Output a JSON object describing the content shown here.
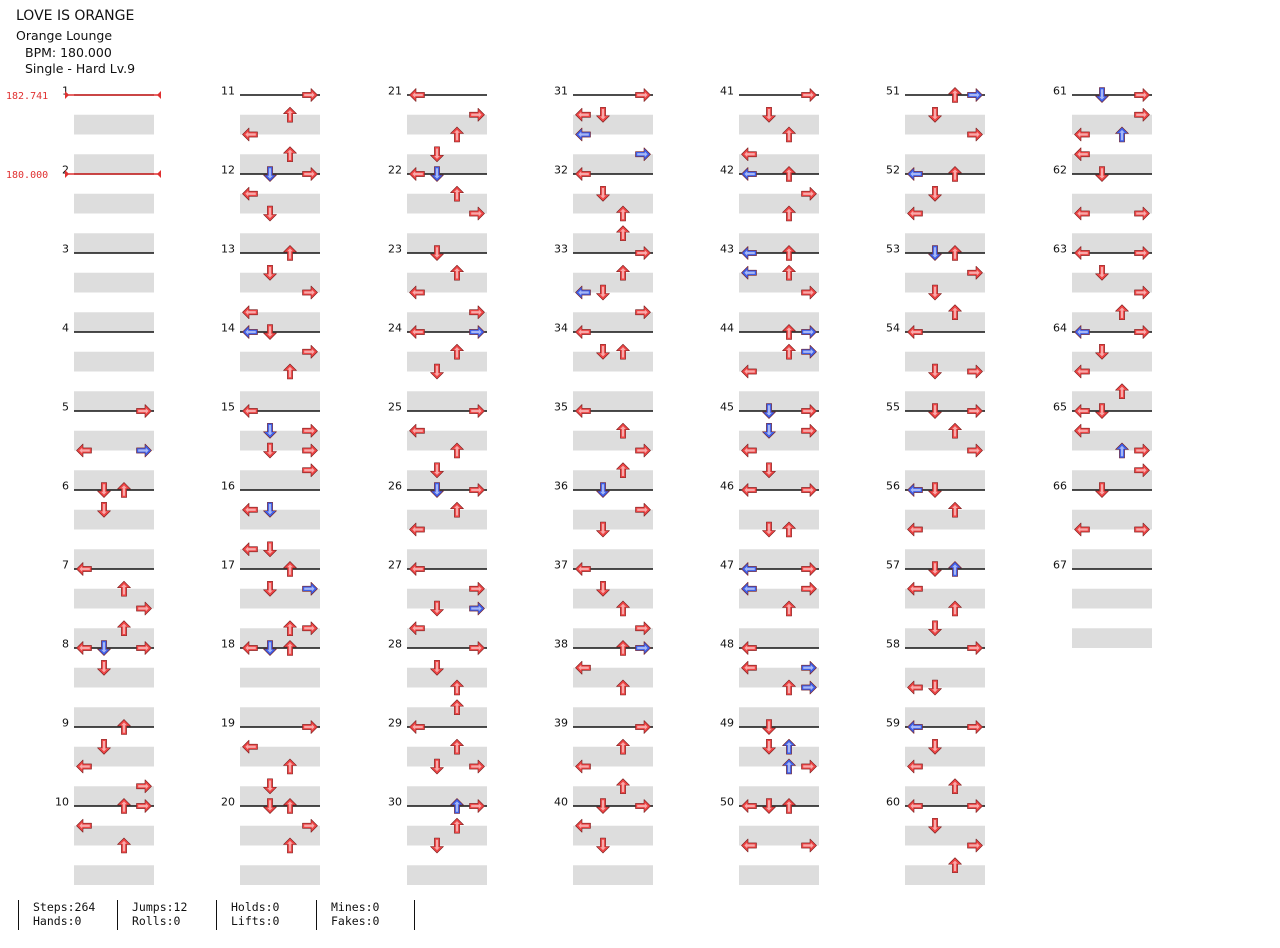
{
  "song": {
    "title": "LOVE IS ORANGE",
    "artist": "Orange Lounge",
    "bpm_text": "BPM: 180.000",
    "difficulty_text": "Single - Hard  Lv.9"
  },
  "bpm_markers": [
    {
      "label": "182.741",
      "measure": 1
    },
    {
      "label": "180.000",
      "measure": 2
    }
  ],
  "measure_count": 67,
  "measures_per_column": 10,
  "colors": {
    "red_arrow": "#ee4444",
    "blue_arrow": "#3d5fe8",
    "beat_stripe": "#dddddd",
    "measure_line": "#111111",
    "bpm_marker": "#e03030"
  },
  "notes": [
    [
      5,
      0,
      3
    ],
    [
      5,
      2,
      0
    ],
    [
      5,
      2,
      3
    ],
    [
      6,
      0,
      1
    ],
    [
      6,
      0,
      2
    ],
    [
      6,
      1,
      1
    ],
    [
      7,
      0,
      0
    ],
    [
      7,
      1,
      2
    ],
    [
      7,
      2,
      3
    ],
    [
      7,
      3,
      2
    ],
    [
      8,
      0,
      0
    ],
    [
      8,
      0,
      1
    ],
    [
      8,
      0,
      3
    ],
    [
      8,
      1,
      1
    ],
    [
      9,
      0,
      2
    ],
    [
      9,
      1,
      1
    ],
    [
      9,
      2,
      0
    ],
    [
      9,
      3,
      3
    ],
    [
      10,
      0,
      2
    ],
    [
      10,
      0,
      3
    ],
    [
      10,
      1,
      0
    ],
    [
      10,
      2,
      2
    ],
    [
      11,
      0,
      3
    ],
    [
      11,
      1,
      2
    ],
    [
      11,
      2,
      0
    ],
    [
      11,
      3,
      2
    ],
    [
      12,
      0,
      3
    ],
    [
      12,
      0,
      1
    ],
    [
      12,
      1,
      0
    ],
    [
      12,
      2,
      1
    ],
    [
      13,
      0,
      2
    ],
    [
      13,
      1,
      1
    ],
    [
      13,
      2,
      3
    ],
    [
      13,
      3,
      0
    ],
    [
      14,
      0,
      1
    ],
    [
      14,
      0,
      0
    ],
    [
      14,
      1,
      3
    ],
    [
      14,
      2,
      2
    ],
    [
      15,
      0,
      0
    ],
    [
      15,
      1,
      3
    ],
    [
      15,
      1,
      1
    ],
    [
      15,
      2,
      1
    ],
    [
      15,
      2,
      3
    ],
    [
      15,
      3,
      3
    ],
    [
      16,
      1,
      0
    ],
    [
      16,
      1,
      1
    ],
    [
      16,
      3,
      0
    ],
    [
      16,
      3,
      1
    ],
    [
      17,
      0,
      2
    ],
    [
      17,
      1,
      1
    ],
    [
      17,
      1,
      3
    ],
    [
      17,
      3,
      2
    ],
    [
      17,
      3,
      3
    ],
    [
      18,
      0,
      2
    ],
    [
      18,
      0,
      1
    ],
    [
      18,
      0,
      0
    ],
    [
      19,
      0,
      3
    ],
    [
      19,
      1,
      0
    ],
    [
      19,
      2,
      2
    ],
    [
      19,
      3,
      1
    ],
    [
      20,
      0,
      2
    ],
    [
      20,
      0,
      1
    ],
    [
      20,
      1,
      3
    ],
    [
      20,
      2,
      2
    ],
    [
      21,
      0,
      0
    ],
    [
      21,
      1,
      3
    ],
    [
      21,
      2,
      2
    ],
    [
      21,
      3,
      1
    ],
    [
      22,
      0,
      0
    ],
    [
      22,
      0,
      1
    ],
    [
      22,
      1,
      2
    ],
    [
      22,
      2,
      3
    ],
    [
      23,
      0,
      1
    ],
    [
      23,
      1,
      2
    ],
    [
      23,
      2,
      0
    ],
    [
      23,
      3,
      3
    ],
    [
      24,
      0,
      0
    ],
    [
      24,
      0,
      3
    ],
    [
      24,
      1,
      2
    ],
    [
      24,
      2,
      1
    ],
    [
      25,
      0,
      3
    ],
    [
      25,
      1,
      0
    ],
    [
      25,
      2,
      2
    ],
    [
      25,
      3,
      1
    ],
    [
      26,
      0,
      3
    ],
    [
      26,
      0,
      1
    ],
    [
      26,
      1,
      2
    ],
    [
      26,
      2,
      0
    ],
    [
      27,
      0,
      0
    ],
    [
      27,
      1,
      3
    ],
    [
      27,
      2,
      1
    ],
    [
      27,
      2,
      3
    ],
    [
      27,
      3,
      0
    ],
    [
      28,
      0,
      3
    ],
    [
      28,
      1,
      1
    ],
    [
      28,
      2,
      2
    ],
    [
      28,
      3,
      2
    ],
    [
      29,
      0,
      0
    ],
    [
      29,
      1,
      2
    ],
    [
      29,
      2,
      1
    ],
    [
      29,
      2,
      3
    ],
    [
      30,
      0,
      2
    ],
    [
      30,
      0,
      3
    ],
    [
      30,
      1,
      2
    ],
    [
      30,
      2,
      1
    ],
    [
      31,
      0,
      3
    ],
    [
      31,
      1,
      0
    ],
    [
      31,
      1,
      1
    ],
    [
      31,
      2,
      0
    ],
    [
      31,
      3,
      3
    ],
    [
      32,
      0,
      0
    ],
    [
      32,
      1,
      1
    ],
    [
      32,
      2,
      2
    ],
    [
      32,
      3,
      2
    ],
    [
      33,
      0,
      3
    ],
    [
      33,
      1,
      2
    ],
    [
      33,
      2,
      1
    ],
    [
      33,
      2,
      0
    ],
    [
      33,
      3,
      3
    ],
    [
      34,
      0,
      0
    ],
    [
      34,
      1,
      1
    ],
    [
      34,
      1,
      2
    ],
    [
      35,
      0,
      0
    ],
    [
      35,
      1,
      2
    ],
    [
      35,
      2,
      3
    ],
    [
      35,
      3,
      2
    ],
    [
      36,
      0,
      1
    ],
    [
      36,
      1,
      3
    ],
    [
      36,
      2,
      1
    ],
    [
      37,
      0,
      0
    ],
    [
      37,
      1,
      1
    ],
    [
      37,
      2,
      2
    ],
    [
      37,
      3,
      3
    ],
    [
      38,
      0,
      2
    ],
    [
      38,
      0,
      3
    ],
    [
      38,
      1,
      0
    ],
    [
      38,
      2,
      2
    ],
    [
      39,
      0,
      3
    ],
    [
      39,
      1,
      2
    ],
    [
      39,
      2,
      0
    ],
    [
      39,
      3,
      2
    ],
    [
      40,
      0,
      3
    ],
    [
      40,
      0,
      1
    ],
    [
      40,
      1,
      0
    ],
    [
      40,
      2,
      1
    ],
    [
      41,
      0,
      3
    ],
    [
      41,
      1,
      1
    ],
    [
      41,
      2,
      2
    ],
    [
      41,
      3,
      0
    ],
    [
      42,
      0,
      0
    ],
    [
      42,
      0,
      2
    ],
    [
      42,
      1,
      3
    ],
    [
      42,
      2,
      2
    ],
    [
      43,
      0,
      2
    ],
    [
      43,
      0,
      0
    ],
    [
      43,
      1,
      2
    ],
    [
      43,
      1,
      0
    ],
    [
      43,
      2,
      3
    ],
    [
      44,
      0,
      2
    ],
    [
      44,
      0,
      3
    ],
    [
      44,
      1,
      2
    ],
    [
      44,
      1,
      3
    ],
    [
      44,
      2,
      0
    ],
    [
      45,
      0,
      3
    ],
    [
      45,
      0,
      1
    ],
    [
      45,
      1,
      1
    ],
    [
      45,
      1,
      3
    ],
    [
      45,
      2,
      0
    ],
    [
      45,
      3,
      1
    ],
    [
      46,
      0,
      0
    ],
    [
      46,
      0,
      3
    ],
    [
      46,
      2,
      1
    ],
    [
      46,
      2,
      2
    ],
    [
      47,
      0,
      3
    ],
    [
      47,
      0,
      0
    ],
    [
      47,
      1,
      3
    ],
    [
      47,
      1,
      0
    ],
    [
      47,
      2,
      2
    ],
    [
      48,
      0,
      0
    ],
    [
      48,
      1,
      0
    ],
    [
      48,
      1,
      3
    ],
    [
      48,
      2,
      3
    ],
    [
      48,
      2,
      2
    ],
    [
      49,
      0,
      1
    ],
    [
      49,
      1,
      2
    ],
    [
      49,
      1,
      1
    ],
    [
      49,
      2,
      2
    ],
    [
      49,
      2,
      3
    ],
    [
      50,
      0,
      0
    ],
    [
      50,
      0,
      1
    ],
    [
      50,
      0,
      2
    ],
    [
      50,
      2,
      0
    ],
    [
      50,
      2,
      3
    ],
    [
      51,
      0,
      2
    ],
    [
      51,
      0,
      3
    ],
    [
      51,
      1,
      1
    ],
    [
      51,
      2,
      3
    ],
    [
      52,
      0,
      2
    ],
    [
      52,
      0,
      0
    ],
    [
      52,
      1,
      1
    ],
    [
      52,
      2,
      0
    ],
    [
      53,
      0,
      1
    ],
    [
      53,
      0,
      2
    ],
    [
      53,
      1,
      3
    ],
    [
      53,
      2,
      1
    ],
    [
      53,
      3,
      2
    ],
    [
      54,
      0,
      0
    ],
    [
      54,
      2,
      1
    ],
    [
      54,
      2,
      3
    ],
    [
      55,
      0,
      1
    ],
    [
      55,
      0,
      3
    ],
    [
      55,
      1,
      2
    ],
    [
      55,
      2,
      3
    ],
    [
      56,
      0,
      1
    ],
    [
      56,
      0,
      0
    ],
    [
      56,
      1,
      2
    ],
    [
      56,
      2,
      0
    ],
    [
      57,
      0,
      1
    ],
    [
      57,
      0,
      2
    ],
    [
      57,
      1,
      0
    ],
    [
      57,
      2,
      2
    ],
    [
      57,
      3,
      1
    ],
    [
      58,
      0,
      3
    ],
    [
      58,
      2,
      0
    ],
    [
      58,
      2,
      1
    ],
    [
      59,
      0,
      3
    ],
    [
      59,
      0,
      0
    ],
    [
      59,
      1,
      1
    ],
    [
      59,
      2,
      0
    ],
    [
      59,
      3,
      2
    ],
    [
      60,
      0,
      0
    ],
    [
      60,
      0,
      3
    ],
    [
      60,
      1,
      1
    ],
    [
      60,
      2,
      3
    ],
    [
      60,
      3,
      2
    ],
    [
      61,
      0,
      3
    ],
    [
      61,
      0,
      1
    ],
    [
      61,
      1,
      3
    ],
    [
      61,
      2,
      0
    ],
    [
      61,
      2,
      2
    ],
    [
      61,
      3,
      0
    ],
    [
      62,
      0,
      1
    ],
    [
      62,
      2,
      0
    ],
    [
      62,
      2,
      3
    ],
    [
      63,
      0,
      0
    ],
    [
      63,
      0,
      3
    ],
    [
      63,
      1,
      1
    ],
    [
      63,
      2,
      3
    ],
    [
      63,
      3,
      2
    ],
    [
      64,
      0,
      0
    ],
    [
      64,
      0,
      3
    ],
    [
      64,
      1,
      1
    ],
    [
      64,
      2,
      0
    ],
    [
      64,
      3,
      2
    ],
    [
      65,
      0,
      0
    ],
    [
      65,
      0,
      1
    ],
    [
      65,
      1,
      0
    ],
    [
      65,
      2,
      3
    ],
    [
      65,
      2,
      2
    ],
    [
      65,
      3,
      3
    ],
    [
      66,
      0,
      1
    ],
    [
      66,
      2,
      0
    ],
    [
      66,
      2,
      3
    ]
  ],
  "blue_notes": [
    [
      5,
      2,
      3
    ],
    [
      6,
      1,
      2
    ],
    [
      8,
      0,
      1
    ],
    [
      10,
      1,
      3
    ],
    [
      12,
      0,
      1
    ],
    [
      14,
      0,
      0
    ],
    [
      15,
      1,
      1
    ],
    [
      16,
      1,
      1
    ],
    [
      17,
      1,
      3
    ],
    [
      18,
      0,
      1
    ],
    [
      20,
      1,
      1
    ],
    [
      22,
      0,
      1
    ],
    [
      24,
      0,
      3
    ],
    [
      26,
      0,
      1
    ],
    [
      27,
      2,
      3
    ],
    [
      28,
      0,
      0
    ],
    [
      30,
      1,
      3
    ],
    [
      30,
      0,
      2
    ],
    [
      31,
      2,
      0
    ],
    [
      31,
      3,
      3
    ],
    [
      33,
      2,
      0
    ],
    [
      34,
      0,
      3
    ],
    [
      36,
      0,
      1
    ],
    [
      38,
      0,
      3
    ],
    [
      40,
      1,
      1
    ],
    [
      42,
      0,
      0
    ],
    [
      43,
      0,
      0
    ],
    [
      43,
      1,
      0
    ],
    [
      44,
      0,
      3
    ],
    [
      44,
      1,
      3
    ],
    [
      45,
      0,
      1
    ],
    [
      45,
      1,
      1
    ],
    [
      47,
      0,
      0
    ],
    [
      47,
      1,
      0
    ],
    [
      48,
      1,
      3
    ],
    [
      48,
      2,
      3
    ],
    [
      49,
      1,
      2
    ],
    [
      49,
      2,
      2
    ],
    [
      51,
      0,
      3
    ],
    [
      52,
      0,
      0
    ],
    [
      53,
      0,
      1
    ],
    [
      55,
      1,
      3
    ],
    [
      56,
      0,
      0
    ],
    [
      57,
      0,
      2
    ],
    [
      59,
      0,
      0
    ],
    [
      60,
      1,
      3
    ],
    [
      61,
      0,
      1
    ],
    [
      61,
      2,
      2
    ],
    [
      63,
      1,
      3
    ],
    [
      64,
      0,
      0
    ],
    [
      65,
      1,
      1
    ],
    [
      65,
      2,
      2
    ]
  ],
  "stats": [
    {
      "line1": "Steps:264",
      "line2": "Hands:0"
    },
    {
      "line1": "Jumps:12",
      "line2": "Rolls:0"
    },
    {
      "line1": "Holds:0",
      "line2": "Lifts:0"
    },
    {
      "line1": "Mines:0",
      "line2": "Fakes:0"
    }
  ]
}
